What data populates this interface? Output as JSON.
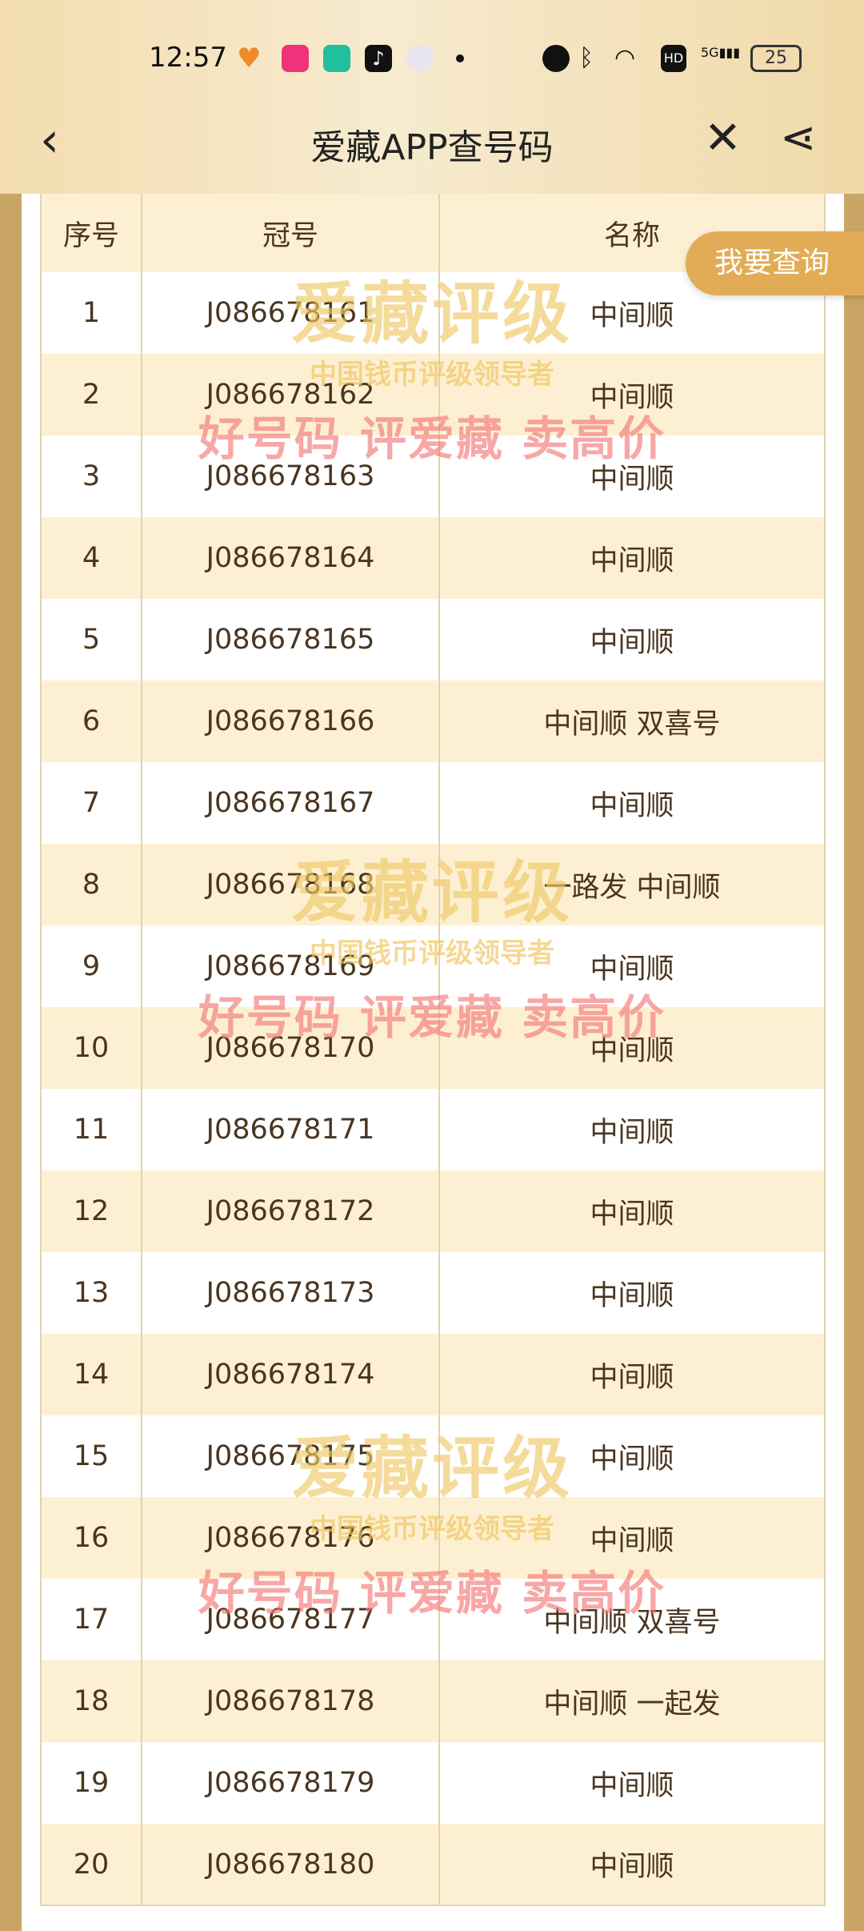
{
  "status_bar": {
    "time": "12:57",
    "battery": "25",
    "icons": [
      "heart-app-icon",
      "vipshop-icon",
      "mijia-icon",
      "tiktok-icon",
      "avatar-icon",
      "dot",
      "alarm-icon",
      "bluetooth-icon",
      "wifi-icon",
      "hd-icon",
      "5g-signal-icon",
      "battery-icon"
    ]
  },
  "header": {
    "title": "爱藏APP查号码",
    "back_icon": "chevron-left-icon",
    "close_icon": "close-icon",
    "share_icon": "share-icon"
  },
  "table": {
    "columns": [
      "序号",
      "冠号",
      "名称"
    ],
    "rows": [
      [
        "1",
        "J086678161",
        "中间顺"
      ],
      [
        "2",
        "J086678162",
        "中间顺"
      ],
      [
        "3",
        "J086678163",
        "中间顺"
      ],
      [
        "4",
        "J086678164",
        "中间顺"
      ],
      [
        "5",
        "J086678165",
        "中间顺"
      ],
      [
        "6",
        "J086678166",
        "中间顺 双喜号"
      ],
      [
        "7",
        "J086678167",
        "中间顺"
      ],
      [
        "8",
        "J086678168",
        "一路发 中间顺"
      ],
      [
        "9",
        "J086678169",
        "中间顺"
      ],
      [
        "10",
        "J086678170",
        "中间顺"
      ],
      [
        "11",
        "J086678171",
        "中间顺"
      ],
      [
        "12",
        "J086678172",
        "中间顺"
      ],
      [
        "13",
        "J086678173",
        "中间顺"
      ],
      [
        "14",
        "J086678174",
        "中间顺"
      ],
      [
        "15",
        "J086678175",
        "中间顺"
      ],
      [
        "16",
        "J086678176",
        "中间顺"
      ],
      [
        "17",
        "J086678177",
        "中间顺 双喜号"
      ],
      [
        "18",
        "J086678178",
        "中间顺 一起发"
      ],
      [
        "19",
        "J086678179",
        "中间顺"
      ],
      [
        "20",
        "J086678180",
        "中间顺"
      ]
    ]
  },
  "watermark": {
    "brand": "爱藏评级",
    "slogan": "中国钱币评级领导者",
    "tagline": "好号码 评爱藏 卖高价"
  },
  "fab": {
    "label": "我要查询"
  },
  "colors": {
    "accent": "#e1ac55",
    "row_alt": "#fdf0d2",
    "border": "#c9a566"
  }
}
